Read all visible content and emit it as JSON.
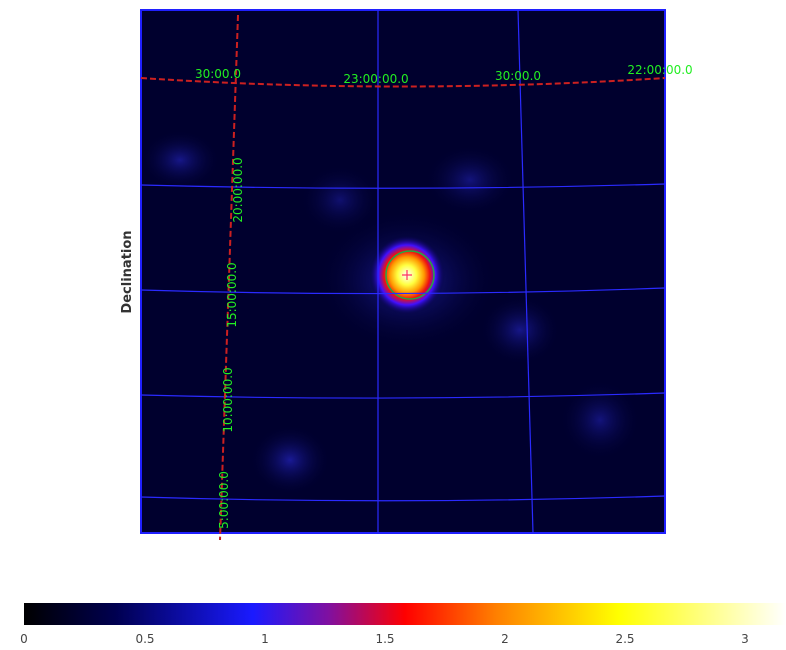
{
  "image": {
    "y_axis_label": "Declination",
    "ra_labels": [
      "30:00.0",
      "23:00:00.0",
      "30:00.0",
      "22:00:00.0"
    ],
    "dec_labels": [
      "20:00:00.0",
      "15:00:00.0",
      "10:00:00.0",
      "5:00:00.0"
    ]
  },
  "colorbar": {
    "tick_labels": [
      "0",
      "0.5",
      "1",
      "1.5",
      "2",
      "2.5",
      "3"
    ]
  }
}
